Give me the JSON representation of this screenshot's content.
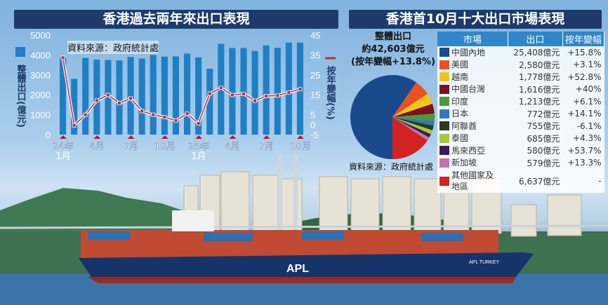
{
  "chart_data": [
    {
      "type": "bar+line",
      "title": "香港過去兩年來出口表現",
      "source": "資料來源：政府統計處",
      "ylabel": "整體出口(億元)",
      "y2label": "按年變幅(%)",
      "ylim": [
        0,
        5000
      ],
      "y2lim": [
        -5,
        45
      ],
      "yticks": [
        "0",
        "1000",
        "2000",
        "3000",
        "4000",
        "5000"
      ],
      "y2ticks": [
        "-5",
        "0",
        "5",
        "15",
        "25",
        "35",
        "45"
      ],
      "xticks": [
        {
          "i": 0,
          "label": "24年",
          "label2": "1月"
        },
        {
          "i": 3,
          "label": "4月"
        },
        {
          "i": 6,
          "label": "7月"
        },
        {
          "i": 9,
          "label": "10月"
        },
        {
          "i": 12,
          "label": "25年",
          "label2": "1月"
        },
        {
          "i": 15,
          "label": "4月"
        },
        {
          "i": 18,
          "label": "7月"
        },
        {
          "i": 21,
          "label": "10月"
        }
      ],
      "bar_color": "#1f7fc4",
      "line_color": "#b0304a",
      "bars": [
        3850,
        2800,
        3850,
        3770,
        3750,
        3730,
        3900,
        3820,
        4000,
        3920,
        3930,
        4070,
        3880,
        3310,
        4560,
        4350,
        4350,
        4200,
        4480,
        4360,
        4620,
        4620
      ],
      "line": [
        33.6,
        -0.3,
        5,
        12.1,
        14.9,
        10.8,
        13.2,
        6.8,
        5,
        3.8,
        2.1,
        5.5,
        0.6,
        15.6,
        18.5,
        14.9,
        15.5,
        12,
        14.4,
        14.6,
        16.2,
        17.8
      ]
    },
    {
      "type": "pie",
      "title": "香港首10月十大出口市場表現",
      "summary": [
        "整體出口",
        "約42,603億元",
        "(按年變幅+13.8%)"
      ],
      "source": "資料來源：政府統計處",
      "columns": [
        "市場",
        "出口",
        "按年變幅"
      ],
      "rows": [
        {
          "market": "中國內地",
          "value": 25408,
          "label": "25,408億元",
          "change": "+15.8%",
          "color": "#1b4a8c"
        },
        {
          "market": "美國",
          "value": 2580,
          "label": "2,580億元",
          "change": "+3.1%",
          "color": "#e9521f"
        },
        {
          "market": "越南",
          "value": 1778,
          "label": "1,778億元",
          "change": "+52.8%",
          "color": "#f6c419"
        },
        {
          "market": "中國台灣",
          "value": 1616,
          "label": "1,616億元",
          "change": "+40%",
          "color": "#7a1222"
        },
        {
          "market": "印度",
          "value": 1213,
          "label": "1,213億元",
          "change": "+6.1%",
          "color": "#4c9a3c"
        },
        {
          "market": "日本",
          "value": 772,
          "label": "772億元",
          "change": "+14.1%",
          "color": "#2f7bc2"
        },
        {
          "market": "阿聯酋",
          "value": 755,
          "label": "755億元",
          "change": "-6.1%",
          "color": "#2b3a1b"
        },
        {
          "market": "泰國",
          "value": 685,
          "label": "685億元",
          "change": "+4.3%",
          "color": "#a9c932"
        },
        {
          "market": "馬來西亞",
          "value": 580,
          "label": "580億元",
          "change": "+53.7%",
          "color": "#3b1b5c"
        },
        {
          "market": "新加坡",
          "value": 579,
          "label": "579億元",
          "change": "+13.3%",
          "color": "#c172b2"
        },
        {
          "market": "其他國家及地區",
          "value": 6637,
          "label": "6,637億元",
          "change": "-",
          "color": "#d22222"
        }
      ]
    }
  ],
  "photo": {
    "ship_name": "APL",
    "ship_name2": "APL TURKEY"
  }
}
